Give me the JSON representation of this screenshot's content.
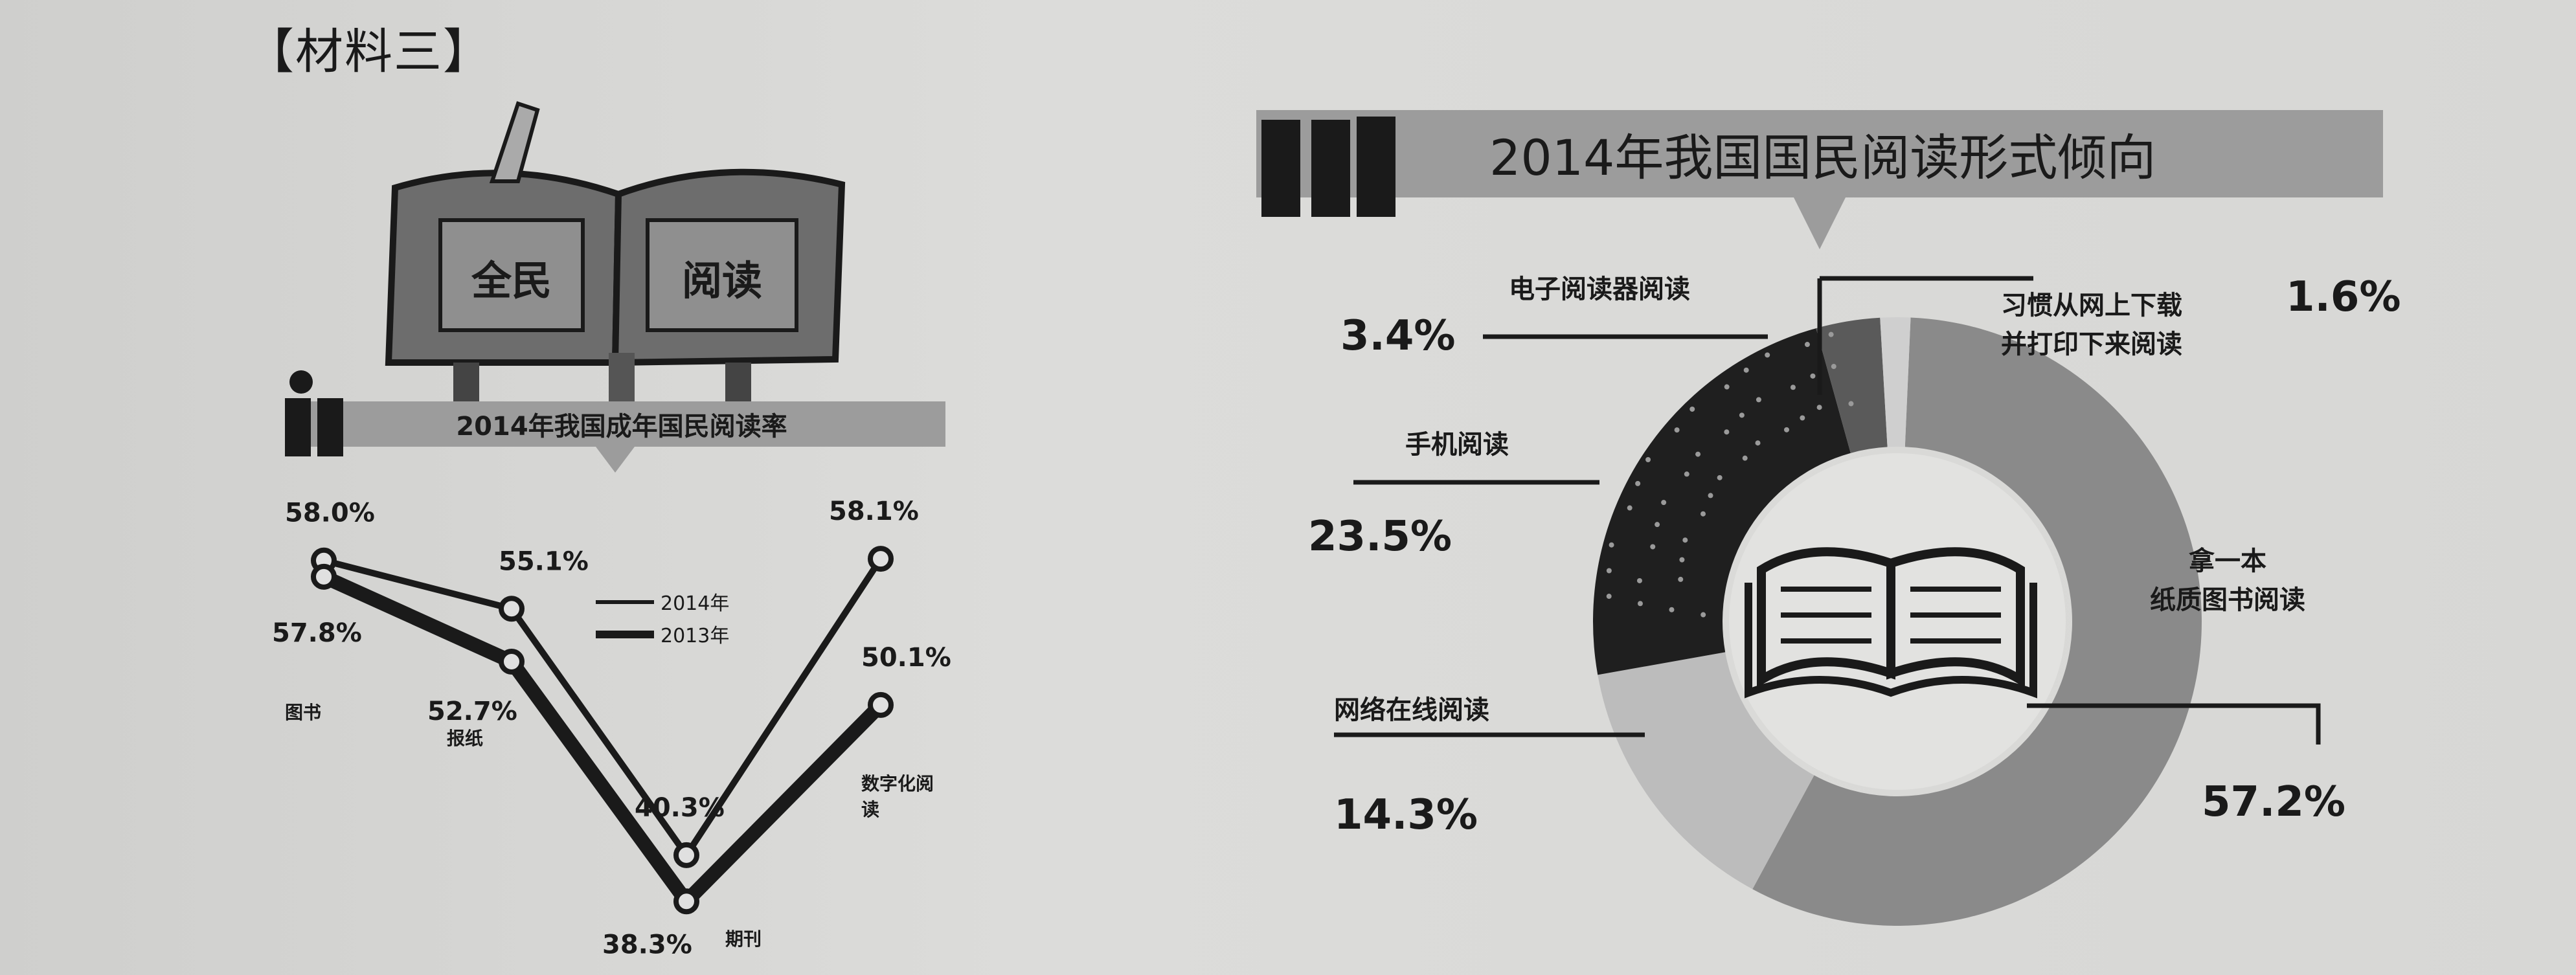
{
  "material_label": "【材料三】",
  "icons": {
    "book_cover": "book-cover-icon",
    "book_small": "book-icon",
    "book_center": "open-book-icon"
  },
  "colors": {
    "dark": "#1f1f1f",
    "mid": "#8a8a8a",
    "light": "#bcbcbc",
    "banner": "#9c9c9c"
  },
  "chart_data": [
    {
      "type": "line",
      "title": "2014年我国成年国民阅读率",
      "cover_text": [
        "全民",
        "阅读"
      ],
      "categories": [
        "图书",
        "报纸",
        "期刊",
        "数字化阅读"
      ],
      "series": [
        {
          "name": "2014年",
          "values": [
            58.0,
            55.1,
            40.3,
            58.1
          ],
          "value_labels": [
            "58.0%",
            "55.1%",
            "40.3%",
            "58.1%"
          ]
        },
        {
          "name": "2013年",
          "values": [
            57.8,
            52.7,
            38.3,
            50.1
          ],
          "value_labels": [
            "57.8%",
            "52.7%",
            "38.3%",
            "50.1%"
          ]
        }
      ],
      "legend": [
        "2014年",
        "2013年"
      ],
      "legend_position": "center"
    },
    {
      "type": "pie",
      "title": "2014年我国国民阅读形式倾向",
      "slices": [
        {
          "label": "拿一本纸质图书阅读",
          "label_lines": [
            "拿一本",
            "纸质图书阅读"
          ],
          "value": 57.2,
          "display": "57.2%"
        },
        {
          "label": "网络在线阅读",
          "label_lines": [
            "网络在线阅读"
          ],
          "value": 14.3,
          "display": "14.3%"
        },
        {
          "label": "手机阅读",
          "label_lines": [
            "手机阅读"
          ],
          "value": 23.5,
          "display": "23.5%"
        },
        {
          "label": "电子阅读器阅读",
          "label_lines": [
            "电子阅读器阅读"
          ],
          "value": 3.4,
          "display": "3.4%"
        },
        {
          "label": "习惯从网上下载并打印下来阅读",
          "label_lines": [
            "习惯从网上下载",
            "并打印下来阅读"
          ],
          "value": 1.6,
          "display": "1.6%"
        }
      ],
      "legend_position": "none"
    }
  ]
}
